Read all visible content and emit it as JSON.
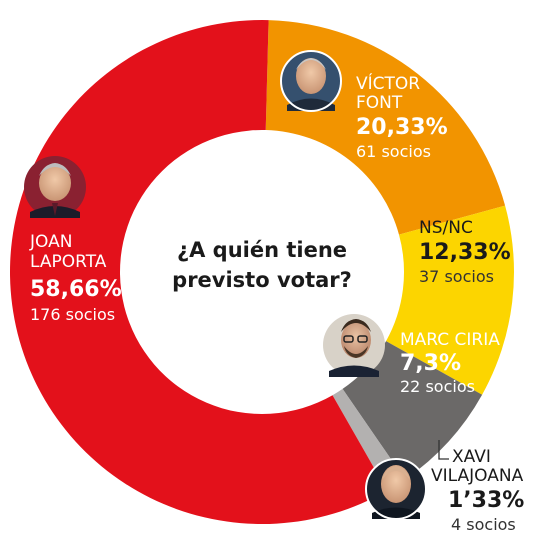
{
  "chart_data": {
    "type": "donut",
    "title": "¿A quién tiene previsto votar?",
    "title_lines": [
      "¿A quién tiene",
      "previsto votar?"
    ],
    "slices": [
      {
        "name_lines": [
          "VÍCTOR",
          "FONT"
        ],
        "percent_label": "20,33%",
        "value": 20.33,
        "socios_label": "61 socios",
        "socios": 61,
        "color": "#f29400"
      },
      {
        "name_lines": [
          "NS/NC"
        ],
        "percent_label": "12,33%",
        "value": 12.33,
        "socios_label": "37 socios",
        "socios": 37,
        "color": "#fcd500"
      },
      {
        "name_lines": [
          "MARC CIRIA"
        ],
        "percent_label": "7,3%",
        "value": 7.3,
        "socios_label": "22 socios",
        "socios": 22,
        "color": "#6b6968"
      },
      {
        "name_lines": [
          "XAVI",
          "VILAJOANA"
        ],
        "percent_label": "1’33%",
        "value": 1.33,
        "socios_label": "4 socios",
        "socios": 4,
        "color": "#b3b1b0"
      },
      {
        "name_lines": [
          "JOAN",
          "LAPORTA"
        ],
        "percent_label": "58,66%",
        "value": 58.66,
        "socios_label": "176 socios",
        "socios": 176,
        "color": "#e3111b"
      }
    ]
  }
}
